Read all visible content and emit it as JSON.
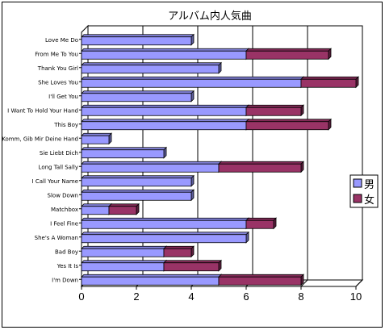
{
  "chart_data": {
    "type": "bar",
    "orientation": "horizontal",
    "stacked": true,
    "title": "アルバム内人気曲",
    "categories": [
      "Love Me Do",
      "From Me To You",
      "Thank You Girl",
      "She Loves You",
      "I'll Get You",
      "I Want To Hold Your Hand",
      "This Boy",
      "Komm, Gib Mir Deine Hand",
      "Sie Liebt Dich",
      "Long Tall Sally",
      "I Call Your Name",
      "Slow Down",
      "Matchbox",
      "I Feel Fine",
      "She's A Woman",
      "Bad Boy",
      "Yes It Is",
      "I'm Down"
    ],
    "series": [
      {
        "name": "男",
        "color": "#9999ff",
        "values": [
          4,
          6,
          5,
          8,
          4,
          6,
          6,
          1,
          3,
          5,
          4,
          4,
          1,
          6,
          6,
          3,
          3,
          5
        ]
      },
      {
        "name": "女",
        "color": "#993366",
        "values": [
          0,
          3,
          0,
          2,
          0,
          2,
          3,
          0,
          0,
          3,
          0,
          0,
          1,
          1,
          0,
          1,
          2,
          3
        ]
      }
    ],
    "xlim": [
      0,
      10
    ],
    "xticks": [
      "0",
      "2",
      "4",
      "6",
      "8",
      "10"
    ],
    "grid": true,
    "legend_position": "right"
  }
}
